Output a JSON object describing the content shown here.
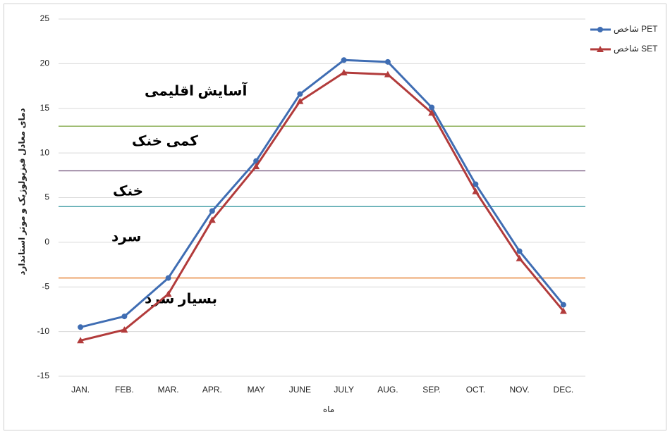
{
  "chart_data": {
    "type": "line",
    "x_label": "ماه",
    "y_label": "دمای معادل فیزیولوژیک و موثر استاندارد",
    "categories": [
      "JAN.",
      "FEB.",
      "MAR.",
      "APR.",
      "MAY",
      "JUNE",
      "JULY",
      "AUG.",
      "SEP.",
      "OCT.",
      "NOV.",
      "DEC."
    ],
    "series": [
      {
        "name": "شاخص PET",
        "color": "#3f6db3",
        "marker": "circle",
        "values": [
          -9.5,
          -8.3,
          -4,
          3.5,
          9.1,
          16.6,
          20.4,
          20.2,
          15.1,
          6.5,
          -1,
          -7
        ]
      },
      {
        "name": "شاخص SET",
        "color": "#b23b3b",
        "marker": "triangle",
        "values": [
          -11,
          -9.8,
          -5.8,
          2.5,
          8.5,
          15.8,
          19,
          18.8,
          14.5,
          5.7,
          -1.8,
          -7.7
        ]
      }
    ],
    "ylim": [
      -15,
      25
    ],
    "yticks": [
      -15,
      -10,
      -5,
      0,
      5,
      10,
      15,
      20,
      25
    ],
    "grid": true,
    "legend": "top-right",
    "reference_lines": [
      {
        "value": 13,
        "color": "#7aa33d"
      },
      {
        "value": 8,
        "color": "#6b4b73"
      },
      {
        "value": 4,
        "color": "#3a9aa0"
      },
      {
        "value": -4,
        "color": "#e47a28"
      }
    ],
    "annotations": [
      "آسایش اقلیمی",
      "کمی خنک",
      "خنک",
      "سرد",
      "بسیار سرد"
    ]
  }
}
